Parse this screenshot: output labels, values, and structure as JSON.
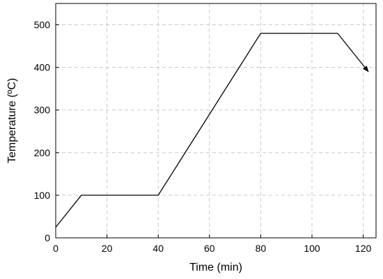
{
  "chart_data": {
    "type": "line",
    "xlabel": "Time (min)",
    "ylabel": "Temperature (ºC)",
    "x": [
      0,
      10,
      40,
      80,
      110,
      122
    ],
    "values": [
      25,
      100,
      100,
      480,
      480,
      390
    ],
    "color": "#000000",
    "arrow_end": true,
    "xlim": [
      0,
      125
    ],
    "xticks": [
      0,
      20,
      40,
      60,
      80,
      100,
      120
    ],
    "ylim": [
      0,
      550
    ],
    "yticks": [
      0,
      100,
      200,
      300,
      400,
      500
    ],
    "grid": true
  }
}
